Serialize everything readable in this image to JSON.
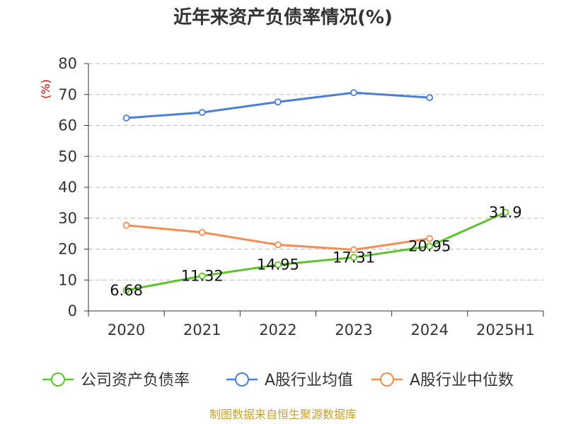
{
  "chart_data": {
    "type": "line",
    "title": "近年来资产负债率情况(%)",
    "ylabel": "(%)",
    "ylim": [
      0,
      80
    ],
    "yticks": [
      0,
      10,
      20,
      30,
      40,
      50,
      60,
      70,
      80
    ],
    "categories": [
      "2020",
      "2021",
      "2022",
      "2023",
      "2024",
      "2025H1"
    ],
    "grid": true,
    "legend_position": "bottom",
    "series": [
      {
        "name": "公司资产负债率",
        "color": "#5fc22f",
        "values": [
          6.68,
          11.32,
          14.95,
          17.31,
          20.95,
          31.9
        ],
        "labels": [
          "6.68",
          "11.32",
          "14.95",
          "17.31",
          "20.95",
          "31.9"
        ]
      },
      {
        "name": "A股行业均值",
        "color": "#4a7fd6",
        "values": [
          62.4,
          64.2,
          67.6,
          70.6,
          69.0,
          null
        ]
      },
      {
        "name": "A股行业中位数",
        "color": "#f58c52",
        "values": [
          27.7,
          25.4,
          21.4,
          19.8,
          23.4,
          null
        ]
      }
    ],
    "source": "制图数据来自恒生聚源数据库",
    "colors": {
      "ylabel": "#cc0000",
      "source": "#c8a030",
      "axis": "#333333",
      "grid": "#bbbbbb"
    }
  }
}
